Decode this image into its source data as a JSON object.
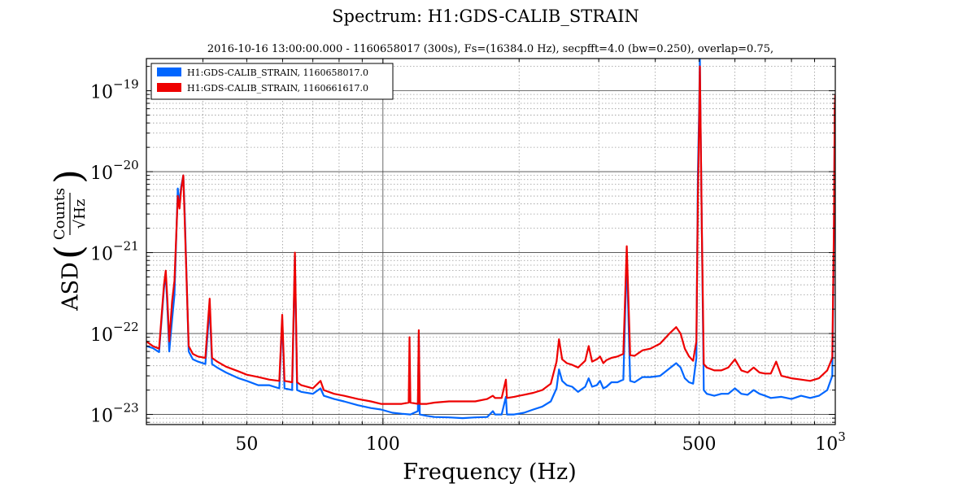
{
  "chart_data": {
    "type": "line",
    "title": "Spectrum: H1:GDS-CALIB_STRAIN",
    "subtitle": "2016-10-16 13:00:00.000 - 1160658017 (300s), Fs=(16384.0 Hz), secpfft=4.0 (bw=0.250), overlap=0.75,",
    "xlabel": "Frequency (Hz)",
    "ylabel": "ASD",
    "ylabel_fraction": {
      "numerator": "Counts",
      "denominator": "√Hz"
    },
    "x_scale": "log",
    "y_scale": "log",
    "xlim": [
      30,
      1000
    ],
    "ylim": [
      7.5e-24,
      2.5e-19
    ],
    "grid": true,
    "legend_position": "top-left",
    "x_ticks": [
      {
        "value": 50,
        "label": "50"
      },
      {
        "value": 100,
        "label": "100"
      },
      {
        "value": 500,
        "label": "500"
      },
      {
        "value": 1000,
        "label": "10",
        "exponent": "3"
      }
    ],
    "y_ticks": [
      {
        "value": 1e-23,
        "mantissa": "10",
        "exponent": "−23"
      },
      {
        "value": 1e-22,
        "mantissa": "10",
        "exponent": "−22"
      },
      {
        "value": 1e-21,
        "mantissa": "10",
        "exponent": "−21"
      },
      {
        "value": 1e-20,
        "mantissa": "10",
        "exponent": "−20"
      },
      {
        "value": 1e-19,
        "mantissa": "10",
        "exponent": "−19"
      }
    ],
    "series": [
      {
        "name": "H1:GDS-CALIB_STRAIN, 1160658017.0",
        "color": "#0066ff",
        "points": [
          [
            30,
            7e-23
          ],
          [
            31,
            6.6e-23
          ],
          [
            32,
            5.9e-23
          ],
          [
            32.8,
            3.6e-22
          ],
          [
            33.1,
            5.5e-22
          ],
          [
            33.4,
            2e-22
          ],
          [
            33.7,
            6e-23
          ],
          [
            34.2,
            1.5e-22
          ],
          [
            34.6,
            3e-22
          ],
          [
            35.2,
            6.2e-21
          ],
          [
            35.5,
            4e-21
          ],
          [
            35.8,
            6.5e-21
          ],
          [
            36.2,
            9e-21
          ],
          [
            36.5,
            2.5e-21
          ],
          [
            37.2,
            6e-23
          ],
          [
            38,
            4.8e-23
          ],
          [
            39,
            4.5e-23
          ],
          [
            40.5,
            4.2e-23
          ],
          [
            41.4,
            2.1e-22
          ],
          [
            41.9,
            4.2e-23
          ],
          [
            43,
            3.8e-23
          ],
          [
            45,
            3.3e-23
          ],
          [
            48,
            2.8e-23
          ],
          [
            50,
            2.6e-23
          ],
          [
            53,
            2.3e-23
          ],
          [
            56,
            2.3e-23
          ],
          [
            59,
            2.1e-23
          ],
          [
            59.9,
            1.5e-22
          ],
          [
            60.6,
            2.1e-23
          ],
          [
            63,
            2e-23
          ],
          [
            63.9,
            9e-22
          ],
          [
            64.6,
            2e-23
          ],
          [
            66,
            1.9e-23
          ],
          [
            70,
            1.8e-23
          ],
          [
            72.8,
            2.1e-23
          ],
          [
            74,
            1.7e-23
          ],
          [
            78,
            1.55e-23
          ],
          [
            82,
            1.45e-23
          ],
          [
            88,
            1.3e-23
          ],
          [
            94,
            1.2e-23
          ],
          [
            99,
            1.15e-23
          ],
          [
            105,
            1.05e-23
          ],
          [
            110,
            1.02e-23
          ],
          [
            115,
            1e-23
          ],
          [
            119.5,
            1.1e-23
          ],
          [
            120,
            9.5e-23
          ],
          [
            120.6,
            1e-23
          ],
          [
            125,
            9.6e-24
          ],
          [
            130,
            9.3e-24
          ],
          [
            140,
            9.2e-24
          ],
          [
            150,
            9e-24
          ],
          [
            160,
            9.2e-24
          ],
          [
            170,
            9.3e-24
          ],
          [
            175,
            1.1e-23
          ],
          [
            177,
            1e-23
          ],
          [
            183,
            1e-23
          ],
          [
            187,
            1.65e-23
          ],
          [
            188,
            1e-23
          ],
          [
            195,
            1e-23
          ],
          [
            205,
            1.05e-23
          ],
          [
            215,
            1.15e-23
          ],
          [
            225,
            1.25e-23
          ],
          [
            235,
            1.45e-23
          ],
          [
            242,
            2.1e-23
          ],
          [
            245,
            3.6e-23
          ],
          [
            249,
            2.6e-23
          ],
          [
            255,
            2.3e-23
          ],
          [
            262,
            2.2e-23
          ],
          [
            270,
            1.9e-23
          ],
          [
            280,
            2.2e-23
          ],
          [
            285,
            2.8e-23
          ],
          [
            290,
            2.2e-23
          ],
          [
            297,
            2.3e-23
          ],
          [
            302,
            2.6e-23
          ],
          [
            307,
            2.1e-23
          ],
          [
            312,
            2.2e-23
          ],
          [
            320,
            2.5e-23
          ],
          [
            330,
            2.5e-23
          ],
          [
            340,
            2.7e-23
          ],
          [
            346,
            9e-22
          ],
          [
            352,
            2.6e-23
          ],
          [
            360,
            2.5e-23
          ],
          [
            375,
            2.9e-23
          ],
          [
            390,
            2.9e-23
          ],
          [
            410,
            3e-23
          ],
          [
            430,
            3.7e-23
          ],
          [
            445,
            4.3e-23
          ],
          [
            455,
            3.8e-23
          ],
          [
            465,
            2.8e-23
          ],
          [
            475,
            2.5e-23
          ],
          [
            485,
            2.4e-23
          ],
          [
            493,
            5e-23
          ],
          [
            497,
            1e-20
          ],
          [
            500,
            6e-20
          ],
          [
            502,
            2.5e-19
          ],
          [
            504,
            3e-20
          ],
          [
            507,
            2e-21
          ],
          [
            512,
            2e-23
          ],
          [
            520,
            1.8e-23
          ],
          [
            540,
            1.7e-23
          ],
          [
            560,
            1.8e-23
          ],
          [
            580,
            1.8e-23
          ],
          [
            600,
            2.1e-23
          ],
          [
            620,
            1.8e-23
          ],
          [
            640,
            1.75e-23
          ],
          [
            660,
            2e-23
          ],
          [
            680,
            1.8e-23
          ],
          [
            700,
            1.7e-23
          ],
          [
            720,
            1.6e-23
          ],
          [
            760,
            1.65e-23
          ],
          [
            800,
            1.55e-23
          ],
          [
            840,
            1.7e-23
          ],
          [
            880,
            1.6e-23
          ],
          [
            920,
            1.7e-23
          ],
          [
            960,
            2e-23
          ],
          [
            985,
            3e-23
          ],
          [
            993,
            1.5e-21
          ],
          [
            997,
            5e-20
          ],
          [
            1000,
            8e-20
          ]
        ]
      },
      {
        "name": "H1:GDS-CALIB_STRAIN, 1160661617.0",
        "color": "#ee0000",
        "points": [
          [
            30,
            8e-23
          ],
          [
            31,
            7e-23
          ],
          [
            32,
            6.5e-23
          ],
          [
            32.8,
            4e-22
          ],
          [
            33.1,
            6e-22
          ],
          [
            33.4,
            2.5e-22
          ],
          [
            33.7,
            8e-23
          ],
          [
            34.2,
            2.5e-22
          ],
          [
            34.6,
            4.5e-22
          ],
          [
            35.2,
            5e-21
          ],
          [
            35.5,
            3.5e-21
          ],
          [
            35.8,
            6e-21
          ],
          [
            36.2,
            9e-21
          ],
          [
            36.5,
            2e-21
          ],
          [
            37.2,
            7e-23
          ],
          [
            38,
            5.6e-23
          ],
          [
            39,
            5.2e-23
          ],
          [
            40.5,
            5e-23
          ],
          [
            41.4,
            2.7e-22
          ],
          [
            41.9,
            5e-23
          ],
          [
            43,
            4.5e-23
          ],
          [
            45,
            3.9e-23
          ],
          [
            48,
            3.4e-23
          ],
          [
            50,
            3.1e-23
          ],
          [
            53,
            2.9e-23
          ],
          [
            56,
            2.7e-23
          ],
          [
            59,
            2.6e-23
          ],
          [
            59.9,
            1.7e-22
          ],
          [
            60.6,
            2.6e-23
          ],
          [
            63,
            2.5e-23
          ],
          [
            63.9,
            1e-21
          ],
          [
            64.6,
            2.5e-23
          ],
          [
            66,
            2.3e-23
          ],
          [
            70,
            2.1e-23
          ],
          [
            72.8,
            2.6e-23
          ],
          [
            74,
            2e-23
          ],
          [
            78,
            1.8e-23
          ],
          [
            82,
            1.7e-23
          ],
          [
            88,
            1.55e-23
          ],
          [
            94,
            1.45e-23
          ],
          [
            99,
            1.35e-23
          ],
          [
            105,
            1.35e-23
          ],
          [
            110,
            1.35e-23
          ],
          [
            114,
            1.4e-23
          ],
          [
            114.5,
            9e-23
          ],
          [
            115,
            1.4e-23
          ],
          [
            119.5,
            1.35e-23
          ],
          [
            120,
            1.1e-22
          ],
          [
            120.6,
            1.35e-23
          ],
          [
            125,
            1.35e-23
          ],
          [
            130,
            1.4e-23
          ],
          [
            140,
            1.45e-23
          ],
          [
            150,
            1.45e-23
          ],
          [
            160,
            1.45e-23
          ],
          [
            170,
            1.55e-23
          ],
          [
            175,
            1.7e-23
          ],
          [
            177,
            1.6e-23
          ],
          [
            183,
            1.6e-23
          ],
          [
            187,
            2.7e-23
          ],
          [
            188,
            1.6e-23
          ],
          [
            195,
            1.65e-23
          ],
          [
            205,
            1.75e-23
          ],
          [
            215,
            1.85e-23
          ],
          [
            225,
            2e-23
          ],
          [
            235,
            2.4e-23
          ],
          [
            242,
            4.5e-23
          ],
          [
            245,
            8.5e-23
          ],
          [
            249,
            4.8e-23
          ],
          [
            255,
            4.3e-23
          ],
          [
            262,
            4.1e-23
          ],
          [
            270,
            3.8e-23
          ],
          [
            280,
            4.6e-23
          ],
          [
            285,
            7e-23
          ],
          [
            290,
            4.5e-23
          ],
          [
            297,
            4.8e-23
          ],
          [
            302,
            5.2e-23
          ],
          [
            307,
            4.3e-23
          ],
          [
            312,
            4.7e-23
          ],
          [
            320,
            5e-23
          ],
          [
            330,
            5.2e-23
          ],
          [
            340,
            5.6e-23
          ],
          [
            346,
            1.2e-21
          ],
          [
            352,
            5.4e-23
          ],
          [
            360,
            5.3e-23
          ],
          [
            375,
            6.2e-23
          ],
          [
            390,
            6.5e-23
          ],
          [
            410,
            7.5e-23
          ],
          [
            430,
            1e-22
          ],
          [
            445,
            1.2e-22
          ],
          [
            455,
            1e-22
          ],
          [
            465,
            6.5e-23
          ],
          [
            475,
            5.2e-23
          ],
          [
            485,
            4.6e-23
          ],
          [
            493,
            8e-23
          ],
          [
            497,
            5e-21
          ],
          [
            500,
            4e-20
          ],
          [
            502,
            2e-19
          ],
          [
            504,
            3e-20
          ],
          [
            507,
            2e-21
          ],
          [
            512,
            4.2e-23
          ],
          [
            520,
            3.8e-23
          ],
          [
            540,
            3.5e-23
          ],
          [
            560,
            3.5e-23
          ],
          [
            580,
            3.8e-23
          ],
          [
            600,
            4.8e-23
          ],
          [
            620,
            3.5e-23
          ],
          [
            640,
            3.3e-23
          ],
          [
            660,
            3.8e-23
          ],
          [
            680,
            3.3e-23
          ],
          [
            700,
            3.2e-23
          ],
          [
            720,
            3.2e-23
          ],
          [
            740,
            4.5e-23
          ],
          [
            760,
            3e-23
          ],
          [
            800,
            2.8e-23
          ],
          [
            840,
            2.7e-23
          ],
          [
            880,
            2.6e-23
          ],
          [
            920,
            2.8e-23
          ],
          [
            960,
            3.5e-23
          ],
          [
            985,
            5e-23
          ],
          [
            993,
            2e-21
          ],
          [
            997,
            6e-20
          ],
          [
            1000,
            9e-20
          ]
        ]
      }
    ]
  }
}
